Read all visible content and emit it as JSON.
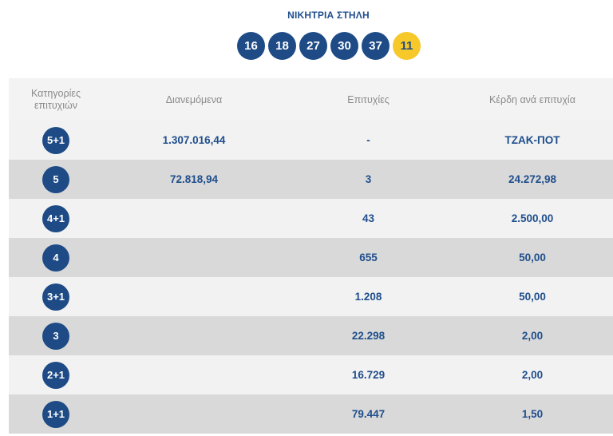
{
  "winning_line": {
    "title": "ΝΙΚΗΤΡΙΑ ΣΤΗΛΗ",
    "numbers": [
      "16",
      "18",
      "27",
      "30",
      "37"
    ],
    "bonus": "11"
  },
  "table": {
    "headers": {
      "category": "Κατηγορίες επιτυχιών",
      "distributed": "Διανεμόμενα",
      "winners": "Επιτυχίες",
      "prize": "Κέρδη ανά επιτυχία"
    },
    "rows": [
      {
        "category": "5+1",
        "distributed": "1.307.016,44",
        "winners": "-",
        "prize": "ΤΖΑΚ-ΠΟΤ"
      },
      {
        "category": "5",
        "distributed": "72.818,94",
        "winners": "3",
        "prize": "24.272,98"
      },
      {
        "category": "4+1",
        "distributed": "",
        "winners": "43",
        "prize": "2.500,00"
      },
      {
        "category": "4",
        "distributed": "",
        "winners": "655",
        "prize": "50,00"
      },
      {
        "category": "3+1",
        "distributed": "",
        "winners": "1.208",
        "prize": "50,00"
      },
      {
        "category": "3",
        "distributed": "",
        "winners": "22.298",
        "prize": "2,00"
      },
      {
        "category": "2+1",
        "distributed": "",
        "winners": "16.729",
        "prize": "2,00"
      },
      {
        "category": "1+1",
        "distributed": "",
        "winners": "79.447",
        "prize": "1,50"
      }
    ]
  },
  "colors": {
    "primary": "#1e4b86",
    "bonus": "#f7c82a",
    "row_light": "#f2f2f2",
    "row_dark": "#d9d9d9"
  }
}
